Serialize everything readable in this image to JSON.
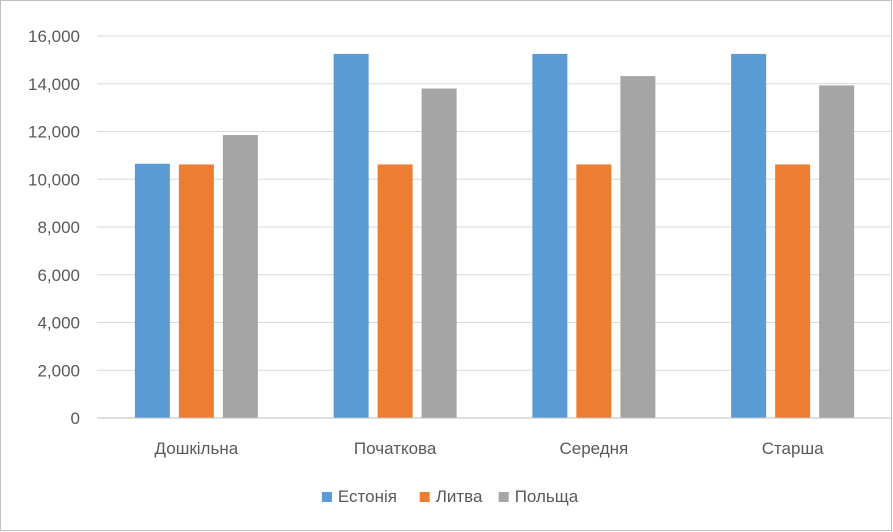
{
  "chart_data": {
    "type": "bar",
    "categories": [
      "Дошкільна",
      "Початкова",
      "Середня",
      "Старша"
    ],
    "series": [
      {
        "name": "Естонія",
        "color": "#5b9bd5",
        "values": [
          10650,
          15250,
          15250,
          15250
        ]
      },
      {
        "name": "Литва",
        "color": "#ed7d31",
        "values": [
          10620,
          10620,
          10620,
          10620
        ]
      },
      {
        "name": "Польща",
        "color": "#a5a5a5",
        "values": [
          11850,
          13800,
          14320,
          13930
        ]
      }
    ],
    "ylim": [
      0,
      16000
    ],
    "yticks": [
      0,
      2000,
      4000,
      6000,
      8000,
      10000,
      12000,
      14000,
      16000
    ],
    "ytick_labels": [
      "0",
      "2,000",
      "4,000",
      "6,000",
      "8,000",
      "10,000",
      "12,000",
      "14,000",
      "16,000"
    ],
    "grid": true,
    "legend_position": "bottom",
    "gridline_color": "#d9d9d9",
    "axis_line_color": "#bfbfbf"
  }
}
